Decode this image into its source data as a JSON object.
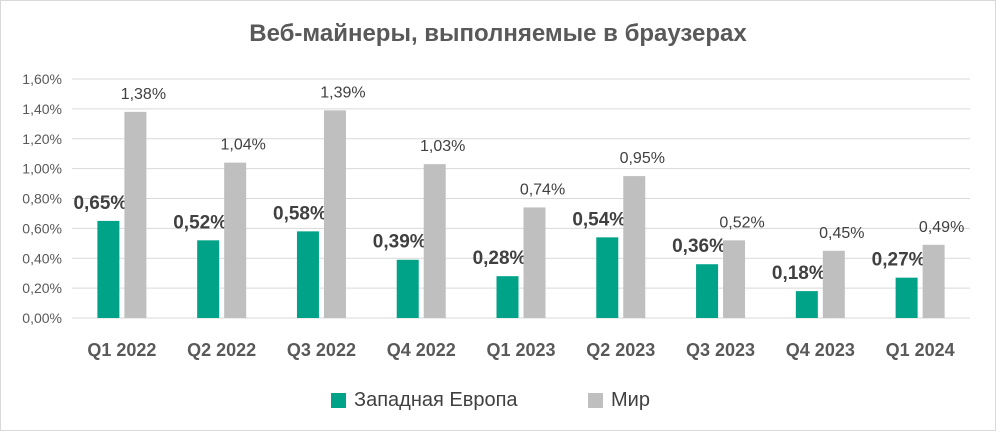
{
  "colors": {
    "europe": "#00a387",
    "world": "#bfbfbf",
    "grid": "#d9d9d9",
    "axis_text": "#595959",
    "label_dark": "#404040"
  },
  "chart_data": {
    "type": "bar",
    "title": "Веб-майнеры, выполняемые в браузерах",
    "categories": [
      "Q1 2022",
      "Q2 2022",
      "Q3 2022",
      "Q4 2022",
      "Q1 2023",
      "Q2 2023",
      "Q3 2023",
      "Q4 2023",
      "Q1 2024"
    ],
    "series": [
      {
        "name": "Западная Европа",
        "values": [
          0.65,
          0.52,
          0.58,
          0.39,
          0.28,
          0.54,
          0.36,
          0.18,
          0.27
        ],
        "labels": [
          "0,65%",
          "0,52%",
          "0,58%",
          "0,39%",
          "0,28%",
          "0,54%",
          "0,36%",
          "0,18%",
          "0,27%"
        ]
      },
      {
        "name": "Мир",
        "values": [
          1.38,
          1.04,
          1.39,
          1.03,
          0.74,
          0.95,
          0.52,
          0.45,
          0.49
        ],
        "labels": [
          "1,38%",
          "1,04%",
          "1,39%",
          "1,03%",
          "0,74%",
          "0,95%",
          "0,52%",
          "0,45%",
          "0,49%"
        ]
      }
    ],
    "ylim": [
      0,
      1.6
    ],
    "yticks": [
      0,
      0.2,
      0.4,
      0.6,
      0.8,
      1.0,
      1.2,
      1.4,
      1.6
    ],
    "ytick_labels": [
      "0,00%",
      "0,20%",
      "0,40%",
      "0,60%",
      "0,80%",
      "1,00%",
      "1,20%",
      "1,40%",
      "1,60%"
    ],
    "grid": true,
    "legend": "bottom"
  }
}
